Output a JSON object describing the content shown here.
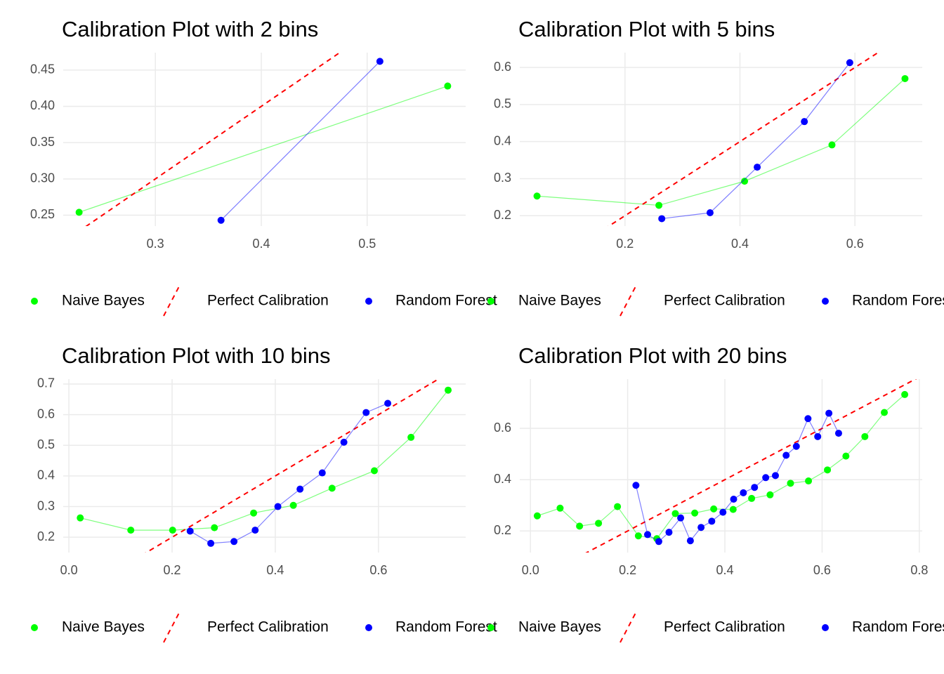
{
  "chart_data": [
    {
      "type": "line",
      "title": "Calibration Plot with 2 bins",
      "xlim": [
        0.213,
        0.593
      ],
      "ylim": [
        0.235,
        0.474
      ],
      "xticks": [
        0.3,
        0.4,
        0.5
      ],
      "yticks": [
        0.25,
        {
          "value": 0.3,
          "label": "0.30"
        },
        0.35,
        {
          "value": 0.4,
          "label": "0.40"
        },
        0.45
      ],
      "grid": true,
      "series": [
        {
          "name": "Naive Bayes",
          "color": "#00ff00",
          "x": [
            0.228,
            0.576
          ],
          "values": [
            0.254,
            0.428
          ]
        },
        {
          "name": "Perfect Calibration",
          "color": "#ff0000",
          "dashed": true,
          "slope": 1,
          "intercept": 0
        },
        {
          "name": "Random Forest",
          "color": "#0000ff",
          "x": [
            0.362,
            0.512
          ],
          "values": [
            0.243,
            0.462
          ]
        }
      ]
    },
    {
      "type": "line",
      "title": "Calibration Plot with 5 bins",
      "xlim": [
        0.017,
        0.717
      ],
      "ylim": [
        0.172,
        0.64
      ],
      "xticks": [
        0.2,
        0.4,
        0.6
      ],
      "yticks": [
        0.2,
        0.3,
        0.4,
        0.5,
        0.6
      ],
      "grid": true,
      "series": [
        {
          "name": "Naive Bayes",
          "color": "#00ff00",
          "x": [
            0.047,
            0.259,
            0.408,
            0.56,
            0.687
          ],
          "values": [
            0.253,
            0.228,
            0.293,
            0.391,
            0.57
          ]
        },
        {
          "name": "Perfect Calibration",
          "color": "#ff0000",
          "dashed": true,
          "slope": 1,
          "intercept": 0
        },
        {
          "name": "Random Forest",
          "color": "#0000ff",
          "x": [
            0.264,
            0.348,
            0.43,
            0.512,
            0.591
          ],
          "values": [
            0.192,
            0.208,
            0.331,
            0.454,
            0.613
          ]
        }
      ]
    },
    {
      "type": "line",
      "title": "Calibration Plot with 10 bins",
      "xlim": [
        -0.011,
        0.769
      ],
      "ylim": [
        0.15,
        0.716
      ],
      "xticks": [
        {
          "value": 0,
          "label": "0.0"
        },
        0.2,
        0.4,
        0.6
      ],
      "yticks": [
        0.2,
        0.3,
        0.4,
        0.5,
        0.6,
        0.7
      ],
      "grid": true,
      "series": [
        {
          "name": "Naive Bayes",
          "color": "#00ff00",
          "x": [
            0.022,
            0.12,
            0.201,
            0.282,
            0.358,
            0.435,
            0.51,
            0.592,
            0.663,
            0.735
          ],
          "values": [
            0.263,
            0.223,
            0.223,
            0.231,
            0.279,
            0.304,
            0.36,
            0.417,
            0.526,
            0.68
          ]
        },
        {
          "name": "Perfect Calibration",
          "color": "#ff0000",
          "dashed": true,
          "slope": 1,
          "intercept": 0
        },
        {
          "name": "Random Forest",
          "color": "#0000ff",
          "x": [
            0.235,
            0.275,
            0.32,
            0.361,
            0.405,
            0.448,
            0.491,
            0.533,
            0.576,
            0.618
          ],
          "values": [
            0.22,
            0.18,
            0.186,
            0.223,
            0.3,
            0.357,
            0.41,
            0.51,
            0.607,
            0.637
          ]
        }
      ]
    },
    {
      "type": "line",
      "title": "Calibration Plot with 20 bins",
      "xlim": [
        -0.022,
        0.806
      ],
      "ylim": [
        0.116,
        0.792
      ],
      "xticks": [
        {
          "value": 0,
          "label": "0.0"
        },
        0.2,
        0.4,
        0.6,
        0.8
      ],
      "yticks": [
        0.2,
        0.4,
        0.6
      ],
      "grid": true,
      "series": [
        {
          "name": "Naive Bayes",
          "color": "#00ff00",
          "x": [
            0.014,
            0.061,
            0.101,
            0.14,
            0.179,
            0.222,
            0.26,
            0.298,
            0.338,
            0.377,
            0.417,
            0.455,
            0.493,
            0.535,
            0.572,
            0.611,
            0.649,
            0.688,
            0.728,
            0.77
          ],
          "values": [
            0.259,
            0.289,
            0.219,
            0.23,
            0.295,
            0.181,
            0.17,
            0.268,
            0.27,
            0.286,
            0.284,
            0.327,
            0.341,
            0.386,
            0.395,
            0.438,
            0.492,
            0.568,
            0.662,
            0.732
          ]
        },
        {
          "name": "Perfect Calibration",
          "color": "#ff0000",
          "dashed": true,
          "slope": 1,
          "intercept": 0
        },
        {
          "name": "Random Forest",
          "color": "#0000ff",
          "x": [
            0.217,
            0.241,
            0.264,
            0.285,
            0.309,
            0.329,
            0.351,
            0.373,
            0.396,
            0.418,
            0.438,
            0.461,
            0.484,
            0.504,
            0.526,
            0.547,
            0.571,
            0.591,
            0.614,
            0.634
          ],
          "values": [
            0.378,
            0.186,
            0.159,
            0.195,
            0.251,
            0.162,
            0.214,
            0.238,
            0.273,
            0.324,
            0.349,
            0.37,
            0.408,
            0.416,
            0.495,
            0.53,
            0.638,
            0.568,
            0.659,
            0.581
          ]
        }
      ]
    }
  ]
}
